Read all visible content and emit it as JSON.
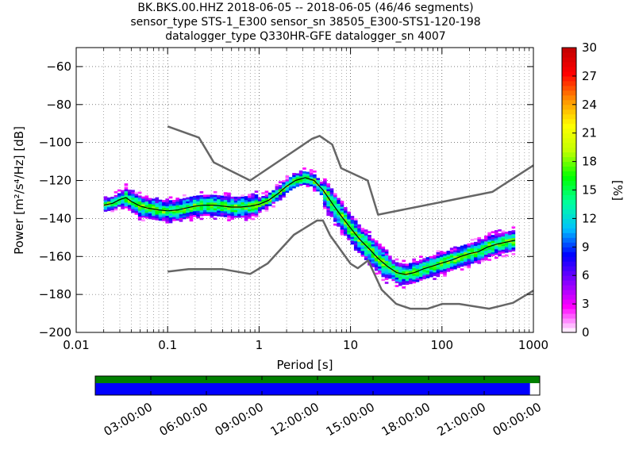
{
  "title": {
    "line1": "BK.BKS.00.HHZ   2018-06-05 -- 2018-06-05  (46/46 segments)",
    "line2": "sensor_type STS-1_E300 sensor_sn 38505_E300-STS1-120-198",
    "line3": "datalogger_type Q330HR-GFE datalogger_sn 4007"
  },
  "colors": {
    "model_lines": "#666666",
    "mean_line": "#000000",
    "colormap": [
      "#ffffff",
      "#ff00ff",
      "#8000ff",
      "#0000ff",
      "#00c0ff",
      "#00ffa0",
      "#00ff00",
      "#c0ff00",
      "#ffff00",
      "#ff9000",
      "#ff0000",
      "#c00000"
    ],
    "coverage_available": "#0000ff",
    "coverage_top": "#008000"
  },
  "chart_data": {
    "type": "heatmap",
    "xlabel": "Period [s]",
    "ylabel": "Power [m²/s⁴/Hz] [dB]",
    "x_scale": "log",
    "xlim": [
      0.01,
      1000
    ],
    "ylim": [
      -200,
      -50
    ],
    "x_ticks": [
      {
        "value": 0.01,
        "label": "0.01"
      },
      {
        "value": 0.1,
        "label": "0.1"
      },
      {
        "value": 1,
        "label": "1"
      },
      {
        "value": 10,
        "label": "10"
      },
      {
        "value": 100,
        "label": "100"
      },
      {
        "value": 1000,
        "label": "1000"
      }
    ],
    "y_ticks": [
      -60,
      -80,
      -100,
      -120,
      -140,
      -160,
      -180,
      -200
    ],
    "grid": true,
    "colorbar": {
      "label": "[%]",
      "range": [
        0,
        30
      ],
      "ticks": [
        0,
        3,
        6,
        9,
        12,
        15,
        18,
        21,
        24,
        27,
        30
      ]
    },
    "series": [
      {
        "role": "high_noise_model",
        "x": [
          0.1,
          0.22,
          0.32,
          0.8,
          3.8,
          4.6,
          6.3,
          7.9,
          15.4,
          20,
          354.8,
          1000
        ],
        "y": [
          -91.5,
          -97.4,
          -110.5,
          -120.0,
          -98.0,
          -96.5,
          -101.0,
          -113.5,
          -120.0,
          -138.0,
          -126.0,
          -112.0
        ]
      },
      {
        "role": "low_noise_model",
        "x": [
          0.1,
          0.17,
          0.4,
          0.8,
          1.24,
          2.4,
          4.3,
          5.0,
          6.0,
          10.0,
          12.0,
          15.6,
          21.9,
          31.6,
          45.0,
          70.0,
          101.0,
          154.0,
          328.0,
          600.0,
          1000.0
        ],
        "y": [
          -168.0,
          -166.7,
          -166.7,
          -169.2,
          -163.7,
          -148.6,
          -141.1,
          -141.1,
          -149.0,
          -163.8,
          -166.2,
          -162.1,
          -177.5,
          -185.0,
          -187.5,
          -187.5,
          -185.0,
          -185.0,
          -187.5,
          -184.4,
          -178.0
        ]
      },
      {
        "role": "mean_psd",
        "x": [
          0.02,
          0.025,
          0.03,
          0.035,
          0.04,
          0.05,
          0.06,
          0.08,
          0.1,
          0.13,
          0.16,
          0.2,
          0.25,
          0.32,
          0.4,
          0.5,
          0.63,
          0.8,
          1.0,
          1.26,
          1.6,
          2.0,
          2.5,
          3.2,
          4.0,
          5.0,
          6.3,
          8.0,
          10.0,
          12.6,
          16.0,
          20.0,
          25.0,
          32.0,
          40.0,
          50.0,
          63.0,
          80.0,
          100.0,
          126.0,
          160.0,
          200.0,
          250.0,
          316.0,
          400.0,
          500.0,
          630.0
        ],
        "y": [
          -133.0,
          -132.0,
          -130.0,
          -129.0,
          -131.0,
          -133.5,
          -134.5,
          -135.5,
          -136.0,
          -135.5,
          -134.5,
          -133.5,
          -133.0,
          -133.0,
          -133.5,
          -134.0,
          -134.0,
          -133.5,
          -132.5,
          -130.5,
          -127.0,
          -123.0,
          -120.0,
          -118.5,
          -120.0,
          -125.0,
          -132.0,
          -139.0,
          -145.0,
          -151.0,
          -156.0,
          -161.0,
          -165.0,
          -168.5,
          -169.5,
          -168.5,
          -166.5,
          -165.0,
          -163.5,
          -162.0,
          -160.0,
          -158.5,
          -157.5,
          -155.0,
          -153.5,
          -152.5,
          -151.5
        ]
      }
    ],
    "coverage": {
      "time_ticks": [
        "03:00:00",
        "06:00:00",
        "09:00:00",
        "12:00:00",
        "15:00:00",
        "18:00:00",
        "21:00:00",
        "00:00:00"
      ],
      "available_fraction": 0.978
    }
  }
}
